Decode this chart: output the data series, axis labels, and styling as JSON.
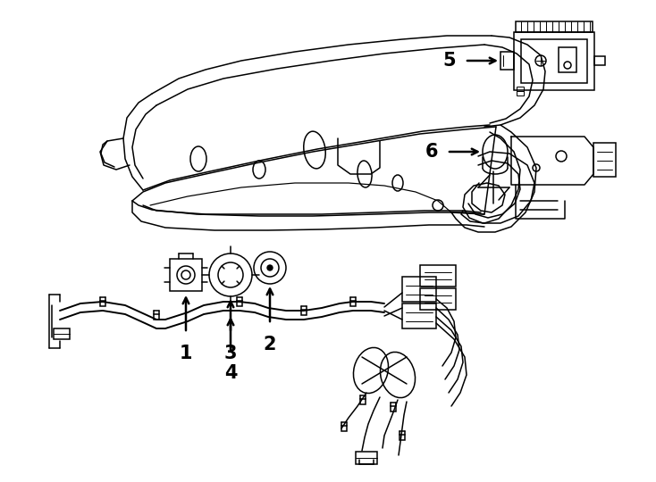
{
  "bg_color": "#ffffff",
  "lc": "#000000",
  "lw": 1.1,
  "fig_w": 7.34,
  "fig_h": 5.4,
  "dpi": 100
}
